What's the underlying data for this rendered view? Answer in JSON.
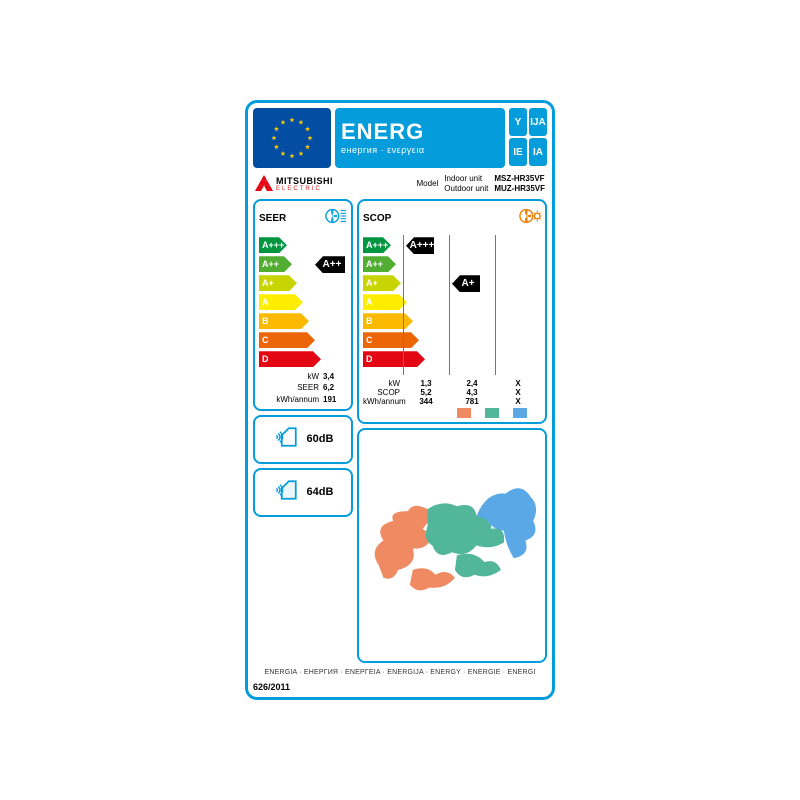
{
  "border_color": "#049cdb",
  "banner": {
    "title": "ENERG",
    "subtitle": "енергия · ενεργεια",
    "eu_flag_bg": "#034ea2",
    "eu_star_color": "#ffcc00",
    "bg": "#049cdb",
    "lang_codes": [
      "Y",
      "IJA",
      "IE",
      "IA"
    ]
  },
  "brand": {
    "logo_text": "MITSUBISHI",
    "logo_sub": "ELECTRIC",
    "model_label": "Model",
    "indoor_label": "Indoor unit",
    "outdoor_label": "Outdoor unit",
    "indoor_code": "MSZ-HR35VF",
    "outdoor_code": "MUZ-HR35VF"
  },
  "classes": [
    {
      "label": "A+++",
      "color": "#009640",
      "width": 28
    },
    {
      "label": "A++",
      "color": "#52ae32",
      "width": 33
    },
    {
      "label": "A+",
      "color": "#c8d400",
      "width": 38
    },
    {
      "label": "A",
      "color": "#ffed00",
      "width": 44
    },
    {
      "label": "B",
      "color": "#fbba00",
      "width": 50
    },
    {
      "label": "C",
      "color": "#ec6608",
      "width": 56
    },
    {
      "label": "D",
      "color": "#e30613",
      "width": 62
    }
  ],
  "seer": {
    "title": "SEER",
    "icon_color": "#049cdb",
    "rating": "A++",
    "rating_index": 1,
    "specs": [
      {
        "k": "kW",
        "v": "3,4"
      },
      {
        "k": "SEER",
        "v": "6,2"
      },
      {
        "k": "kWh/annum",
        "v": "191"
      }
    ]
  },
  "scop": {
    "title": "SCOP",
    "icon_color": "#ef7d00",
    "columns": [
      {
        "rating": "A+++",
        "rating_index": 0,
        "swatch": "#ef8a62"
      },
      {
        "rating": "A+",
        "rating_index": 2,
        "swatch": "#52b69a"
      },
      {
        "rating": null,
        "rating_index": null,
        "swatch": "#5aa9e6"
      }
    ],
    "spec_rows": [
      {
        "k": "kW",
        "vals": [
          "1,3",
          "2,4",
          "X"
        ]
      },
      {
        "k": "SCOP",
        "vals": [
          "5,2",
          "4,3",
          "X"
        ]
      },
      {
        "k": "kWh/annum",
        "vals": [
          "344",
          "781",
          "X"
        ]
      }
    ]
  },
  "sound": {
    "indoor": {
      "value": "60dB"
    },
    "outdoor": {
      "value": "64dB"
    }
  },
  "footer": {
    "langs": "ENERGIA · ЕНЕРГИЯ · ΕΝΕΡΓΕΙΑ · ENERGIJA · ENERGY · ENERGIE · ENERGI",
    "reg": "626/2011"
  },
  "map_colors": {
    "warm": "#ef8a62",
    "mid": "#52b69a",
    "cold": "#5aa9e6"
  }
}
